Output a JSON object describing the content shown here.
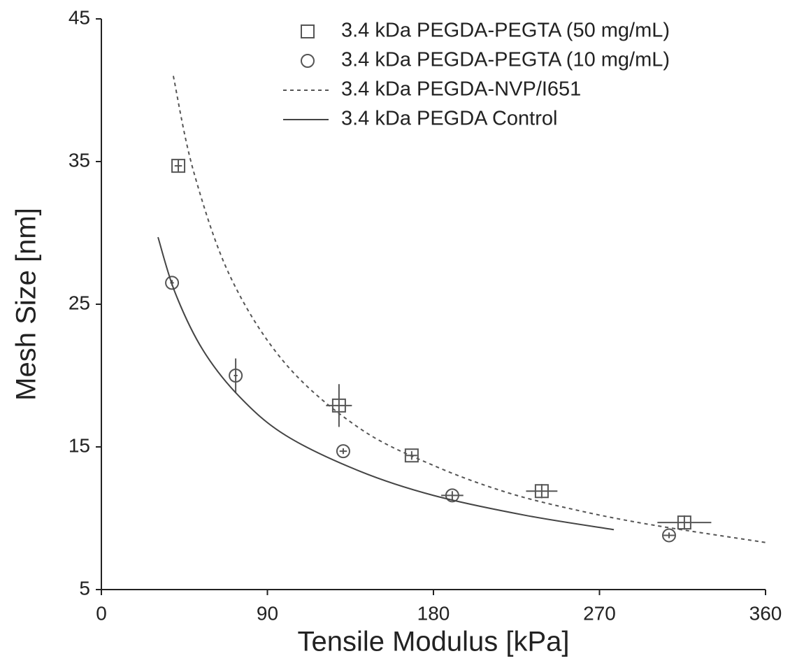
{
  "chart_data": {
    "type": "scatter",
    "x_label": "Tensile Modulus [kPa]",
    "y_label": "Mesh Size [nm]",
    "xlim": [
      0,
      360
    ],
    "xticks": [
      0,
      90,
      180,
      270,
      360
    ],
    "ylim": [
      5,
      45
    ],
    "yticks": [
      5,
      15,
      25,
      35,
      45
    ],
    "grid": false,
    "legend": "upper right",
    "series": [
      {
        "name": "3.4 kDa PEGDA-PEGTA (50 mg/mL)",
        "kind": "points",
        "marker": "square",
        "color": "#555555",
        "x": [
          41.7,
          128.8,
          168.2,
          238.7,
          316.0
        ],
        "values": [
          34.7,
          17.9,
          14.4,
          11.9,
          9.7
        ],
        "x_error": [
          2,
          7,
          3,
          8.5,
          14.6
        ],
        "y_error": [
          0.4,
          1.5,
          0.3,
          0.5,
          0.5
        ]
      },
      {
        "name": "3.4 kDa PEGDA-PEGTA (10 mg/mL)",
        "kind": "points",
        "marker": "circle",
        "color": "#555555",
        "x": [
          38.3,
          72.8,
          131.1,
          190.2,
          307.7
        ],
        "values": [
          26.5,
          20.0,
          14.7,
          11.6,
          8.8
        ],
        "x_error": [
          1,
          1,
          2,
          6,
          3
        ],
        "y_error": [
          0.2,
          1.2,
          0.2,
          0.3,
          0.2
        ]
      },
      {
        "name": "3.4 kDa PEGDA-NVP/I651",
        "kind": "curve",
        "dash": true,
        "color": "#555555",
        "x": [
          39,
          50,
          70,
          100,
          140,
          180,
          220,
          260,
          300,
          360
        ],
        "values": [
          41.0,
          34.3,
          26.9,
          20.8,
          16.3,
          13.7,
          11.8,
          10.5,
          9.5,
          8.3
        ]
      },
      {
        "name": "3.4 kDa PEGDA Control",
        "kind": "curve",
        "dash": false,
        "color": "#444444",
        "x": [
          30.7,
          40,
          55,
          75,
          100,
          140,
          180,
          230,
          277.8
        ],
        "values": [
          29.7,
          25.8,
          21.8,
          18.5,
          15.8,
          13.3,
          11.6,
          10.2,
          9.2
        ]
      }
    ]
  }
}
